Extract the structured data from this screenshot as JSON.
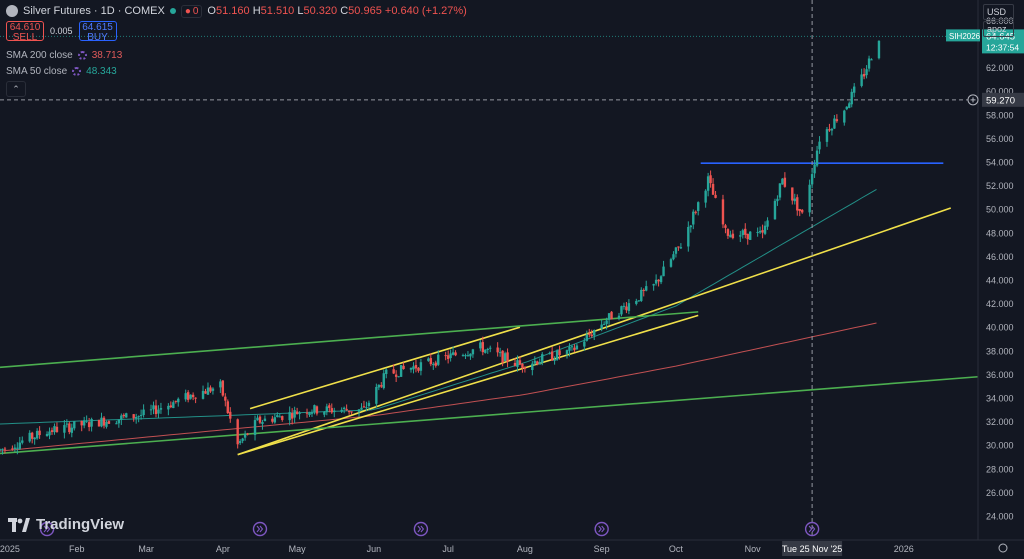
{
  "header": {
    "symbol_title": "Silver Futures · 1D · COMEX",
    "alert_count": "0",
    "ohlc": {
      "o": "51.160",
      "h": "51.510",
      "l": "50.320",
      "c": "50.965",
      "chg": "+0.640 (+1.27%)"
    },
    "labels": {
      "o": "O",
      "h": "H",
      "l": "L",
      "c": "C"
    },
    "sell_price": "64.610",
    "sell_label": "SELL",
    "buy_price": "64.615",
    "buy_label": "BUY",
    "spread": "0.005",
    "indicators": [
      {
        "name": "SMA 200 close",
        "value": "38.713",
        "color": "#e05a5a"
      },
      {
        "name": "SMA 50 close",
        "value": "48.343",
        "color": "#26a69a"
      }
    ]
  },
  "price_scale": {
    "currency": "USD",
    "mode": "apoz",
    "tick_labels": [
      "66.000",
      "64.000",
      "62.000",
      "60.000",
      "58.000",
      "56.000",
      "54.000",
      "52.000",
      "50.000",
      "48.000",
      "46.000",
      "44.000",
      "42.000",
      "40.000",
      "38.000",
      "36.000",
      "34.000",
      "32.000",
      "30.000",
      "28.000",
      "26.000",
      "24.000"
    ],
    "last_price_symbol": "SIH2026",
    "last_price": "64.645",
    "countdown": "12:37:54",
    "crosshair_price": "59.270"
  },
  "time_scale": {
    "tick_labels": [
      "2025",
      "Feb",
      "Mar",
      "Apr",
      "May",
      "Jun",
      "Jul",
      "Aug",
      "Sep",
      "Oct",
      "Nov",
      "2026"
    ],
    "crosshair_label": "Tue 25 Nov '25"
  },
  "branding": "TradingView",
  "colors": {
    "background": "#131722",
    "up": "#26a69a",
    "down": "#ef5350",
    "trendline_yellow": "#f0e04a",
    "trendline_green": "#4caf50",
    "resistance_blue": "#2962ff",
    "sma200": "#e05a5a",
    "sma50": "#26a69a"
  },
  "chart_data": {
    "type": "candlestick",
    "title": "Silver Futures · 1D · COMEX",
    "y_range": [
      24,
      67
    ],
    "x_range": [
      "2025-01-01",
      "2026-01-31"
    ],
    "grid": false,
    "price_anchors": [
      [
        "2025-01-01",
        29.6
      ],
      [
        "2025-01-20",
        31.2
      ],
      [
        "2025-02-10",
        32.0
      ],
      [
        "2025-02-28",
        32.6
      ],
      [
        "2025-03-20",
        34.3
      ],
      [
        "2025-03-31",
        35.0
      ],
      [
        "2025-04-07",
        30.0
      ],
      [
        "2025-04-15",
        32.0
      ],
      [
        "2025-05-05",
        33.0
      ],
      [
        "2025-05-28",
        33.0
      ],
      [
        "2025-06-06",
        36.0
      ],
      [
        "2025-06-20",
        36.8
      ],
      [
        "2025-07-14",
        38.3
      ],
      [
        "2025-07-30",
        36.8
      ],
      [
        "2025-08-20",
        38.0
      ],
      [
        "2025-09-02",
        40.5
      ],
      [
        "2025-09-22",
        43.5
      ],
      [
        "2025-10-03",
        47.0
      ],
      [
        "2025-10-14",
        52.5
      ],
      [
        "2025-10-21",
        48.0
      ],
      [
        "2025-11-05",
        47.8
      ],
      [
        "2025-11-13",
        52.5
      ],
      [
        "2025-11-21",
        49.5
      ],
      [
        "2025-11-28",
        56.0
      ],
      [
        "2025-12-08",
        58.5
      ],
      [
        "2025-12-16",
        61.5
      ],
      [
        "2025-12-22",
        64.6
      ]
    ],
    "sma200": [
      [
        "2025-01-01",
        29.5
      ],
      [
        "2025-04-01",
        31.3
      ],
      [
        "2025-06-01",
        32.5
      ],
      [
        "2025-08-01",
        34.3
      ],
      [
        "2025-10-01",
        36.7
      ],
      [
        "2025-12-22",
        40.4
      ]
    ],
    "sma50": [
      [
        "2025-01-01",
        31.8
      ],
      [
        "2025-04-01",
        32.5
      ],
      [
        "2025-06-01",
        33.0
      ],
      [
        "2025-08-01",
        37.0
      ],
      [
        "2025-10-01",
        41.8
      ],
      [
        "2025-12-22",
        51.8
      ]
    ],
    "trendlines": [
      {
        "color": "yellow",
        "from": [
          "2025-04-12",
          33.1
        ],
        "to": [
          "2025-07-30",
          40.0
        ]
      },
      {
        "color": "yellow",
        "from": [
          "2025-04-07",
          29.2
        ],
        "to": [
          "2025-10-10",
          41.0
        ]
      },
      {
        "color": "yellow",
        "from": [
          "2025-04-07",
          29.2
        ],
        "to": [
          "2026-01-20",
          50.1
        ]
      },
      {
        "color": "green",
        "from": [
          "2025-01-01",
          36.6
        ],
        "to": [
          "2025-10-10",
          41.3
        ]
      },
      {
        "color": "green",
        "from": [
          "2025-01-01",
          29.3
        ],
        "to": [
          "2026-01-31",
          35.8
        ]
      },
      {
        "color": "blue",
        "from": [
          "2025-10-11",
          53.9
        ],
        "to": [
          "2026-01-17",
          53.9
        ]
      }
    ],
    "crosshair": {
      "date": "2025-11-25",
      "price": 59.27
    },
    "event_markers": [
      "2025-01-20",
      "2025-04-16",
      "2025-06-20",
      "2025-09-01",
      "2025-11-25"
    ]
  }
}
